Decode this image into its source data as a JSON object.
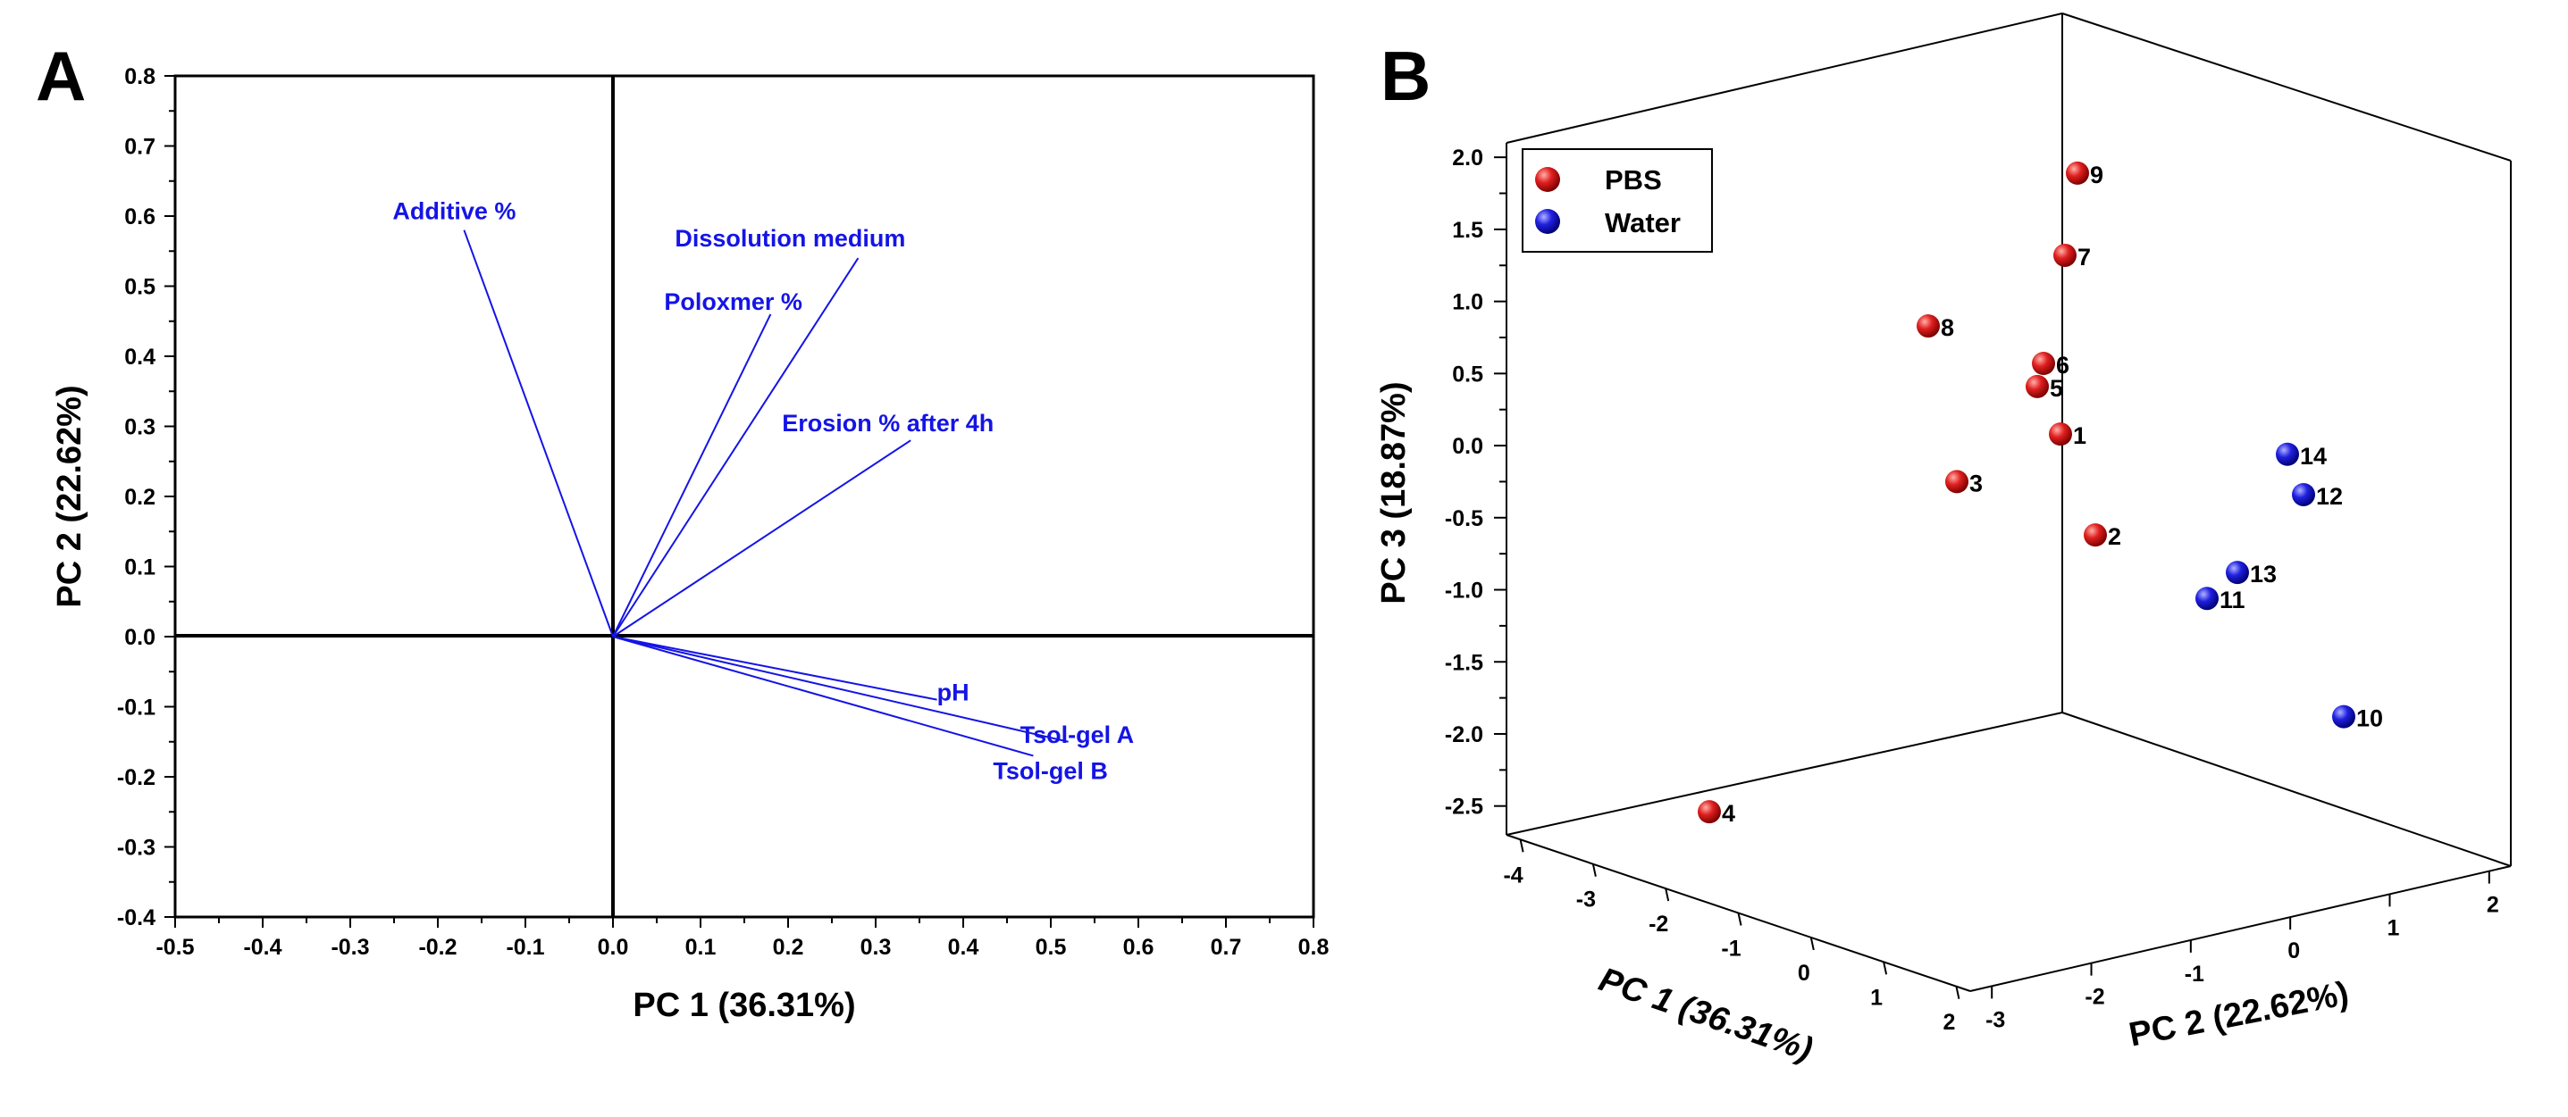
{
  "chart_data": [
    {
      "panel": "A",
      "type": "scatter",
      "subtype": "pca-loading-plot",
      "title": "",
      "xlabel": "PC 1 (36.31%)",
      "ylabel": "PC 2 (22.62%)",
      "xlim": [
        -0.5,
        0.8
      ],
      "ylim": [
        -0.4,
        0.8
      ],
      "xticks": [
        "-0.5",
        "-0.4",
        "-0.3",
        "-0.2",
        "-0.1",
        "0.0",
        "0.1",
        "0.2",
        "0.3",
        "0.4",
        "0.5",
        "0.6",
        "0.7",
        "0.8"
      ],
      "yticks": [
        "0.8",
        "0.7",
        "0.6",
        "0.5",
        "0.4",
        "0.3",
        "0.2",
        "0.1",
        "0.0",
        "-0.1",
        "-0.2",
        "-0.3",
        "-0.4"
      ],
      "loadings": [
        {
          "label": "Additive %",
          "x": -0.17,
          "y": 0.58
        },
        {
          "label": "Dissolution medium",
          "x": 0.28,
          "y": 0.54
        },
        {
          "label": "Poloxmer %",
          "x": 0.18,
          "y": 0.46
        },
        {
          "label": "Erosion % after 4h",
          "x": 0.34,
          "y": 0.28
        },
        {
          "label": "pH",
          "x": 0.37,
          "y": -0.09
        },
        {
          "label": "Tsol-gel A",
          "x": 0.52,
          "y": -0.15
        },
        {
          "label": "Tsol-gel B",
          "x": 0.48,
          "y": -0.17
        }
      ],
      "color": "#1414e6"
    },
    {
      "panel": "B",
      "type": "scatter",
      "subtype": "pca-3d-score-plot",
      "title": "",
      "xlabel": "PC 1 (36.31%)",
      "ylabel": "PC 2 (22.62%)",
      "zlabel": "PC 3 (18.87%)",
      "pc1_ticks": [
        "-4",
        "-3",
        "-2",
        "-1",
        "0",
        "1",
        "2"
      ],
      "pc2_ticks": [
        "-3",
        "-2",
        "-1",
        "0",
        "1",
        "2"
      ],
      "pc3_ticks": [
        "2.0",
        "1.5",
        "1.0",
        "0.5",
        "0.0",
        "-0.5",
        "-1.0",
        "-1.5",
        "-2.0",
        "-2.5"
      ],
      "legend": [
        {
          "name": "PBS",
          "color": "#e02020"
        },
        {
          "name": "Water",
          "color": "#2020e0"
        }
      ],
      "series": [
        {
          "name": "PBS",
          "points": [
            {
              "label": "1",
              "pc3": 0.08
            },
            {
              "label": "2",
              "pc3": -0.62
            },
            {
              "label": "3",
              "pc3": -0.25
            },
            {
              "label": "4",
              "pc3": -2.54
            },
            {
              "label": "5",
              "pc3": 0.41
            },
            {
              "label": "6",
              "pc3": 0.57
            },
            {
              "label": "7",
              "pc3": 1.32
            },
            {
              "label": "8",
              "pc3": 0.83
            },
            {
              "label": "9",
              "pc3": 1.89
            }
          ]
        },
        {
          "name": "Water",
          "points": [
            {
              "label": "10",
              "pc3": -1.88
            },
            {
              "label": "11",
              "pc3": -1.06
            },
            {
              "label": "12",
              "pc3": -0.34
            },
            {
              "label": "13",
              "pc3": -0.88
            },
            {
              "label": "14",
              "pc3": -0.06
            }
          ]
        }
      ]
    }
  ],
  "panels": {
    "a_label": "A",
    "b_label": "B"
  }
}
